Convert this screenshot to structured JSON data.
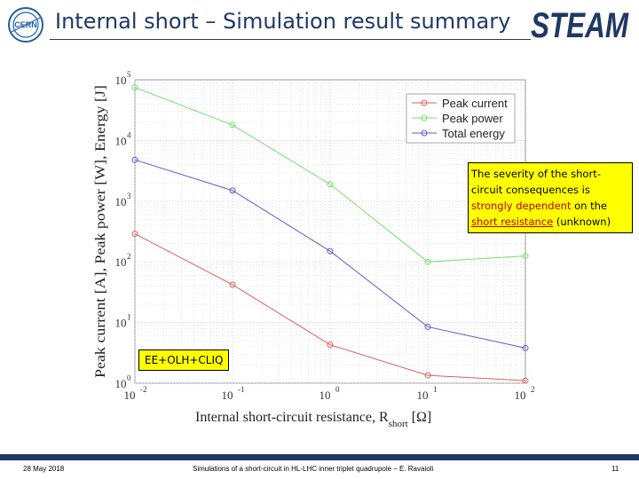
{
  "header": {
    "title": "Internal short – Simulation result summary",
    "left_logo_text": "CERN",
    "right_logo_text": "STEAM",
    "accent_color": "#1f3864"
  },
  "chart_data": {
    "type": "line",
    "xscale": "log",
    "yscale": "log",
    "xlim": [
      0.01,
      100
    ],
    "ylim": [
      1,
      100000
    ],
    "x": [
      0.01,
      0.1,
      1,
      10,
      100
    ],
    "x_tick_labels": [
      "10",
      "10",
      "10",
      "10",
      "10"
    ],
    "x_tick_exponents": [
      "-2",
      "-1",
      "0",
      "1",
      "2"
    ],
    "y_tick_labels": [
      "10",
      "10",
      "10",
      "10",
      "10",
      "10"
    ],
    "y_tick_exponents": [
      "0",
      "1",
      "2",
      "3",
      "4",
      "5"
    ],
    "xlabel": "Internal short-circuit resistance, R",
    "xlabel_subscript": "short",
    "xlabel_unit": "[Ω]",
    "ylabel": "Peak current [A], Peak power [W], Energy [J]",
    "grid": true,
    "legend_position": "top-right",
    "series": [
      {
        "name": "Peak current",
        "color": "#e06060",
        "values": [
          290,
          42,
          4.3,
          1.35,
          1.1
        ]
      },
      {
        "name": "Peak power",
        "color": "#70e070",
        "values": [
          75000,
          18000,
          1900,
          100,
          125
        ]
      },
      {
        "name": "Total energy",
        "color": "#5c5ccc",
        "values": [
          4800,
          1500,
          150,
          8.5,
          3.8
        ]
      }
    ]
  },
  "callout": {
    "part1": "The severity of the short-circuit consequences is ",
    "highlight": "strongly dependent",
    "part2": " on the ",
    "underlined": "short resistance",
    "part3": " (unknown)"
  },
  "ee_label": "EE+OLH+CLIQ",
  "footer": {
    "date": "28 May 2018",
    "center": "Simulations of a short-circuit in HL-LHC inner triplet quadrupole – E. Ravaioli",
    "page": "11"
  }
}
